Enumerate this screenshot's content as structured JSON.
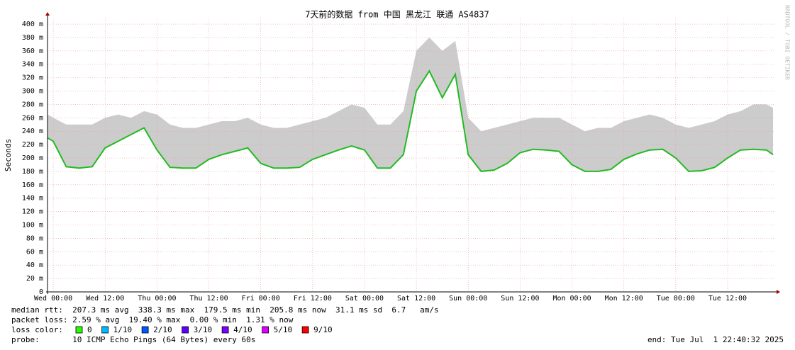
{
  "chart_data": {
    "type": "smokeping",
    "title": "7天前的数据 from 中国 黑龙江 联通 AS4837",
    "y_label": "Seconds",
    "watermark": "RRDTOOL / TOBI OETIKER",
    "x": [
      -1.3,
      0,
      3,
      6,
      9,
      12,
      15,
      18,
      21,
      24,
      27,
      30,
      33,
      36,
      39,
      42,
      45,
      48,
      51,
      54,
      57,
      60,
      63,
      66,
      69,
      72,
      75,
      78,
      81,
      84,
      87,
      90,
      93,
      96,
      99,
      102,
      105,
      108,
      111,
      114,
      117,
      120,
      123,
      126,
      129,
      132,
      135,
      138,
      141,
      144,
      147,
      150,
      153,
      156,
      159,
      162,
      165,
      166.5
    ],
    "series": [
      {
        "name": "median rtt",
        "color": "#22bb22",
        "values": [
          0.23,
          0.225,
          0.187,
          0.185,
          0.187,
          0.215,
          0.225,
          0.235,
          0.245,
          0.212,
          0.186,
          0.185,
          0.185,
          0.198,
          0.205,
          0.21,
          0.215,
          0.192,
          0.185,
          0.185,
          0.186,
          0.198,
          0.205,
          0.212,
          0.218,
          0.212,
          0.185,
          0.185,
          0.205,
          0.3,
          0.33,
          0.29,
          0.325,
          0.205,
          0.18,
          0.182,
          0.192,
          0.208,
          0.213,
          0.212,
          0.21,
          0.19,
          0.18,
          0.18,
          0.183,
          0.198,
          0.206,
          0.212,
          0.213,
          0.2,
          0.18,
          0.181,
          0.186,
          0.2,
          0.212,
          0.213,
          0.212,
          0.205
        ]
      }
    ],
    "smoke": {
      "color": "#cccccc",
      "values": [
        0.265,
        0.26,
        0.25,
        0.25,
        0.25,
        0.26,
        0.265,
        0.26,
        0.27,
        0.265,
        0.25,
        0.245,
        0.245,
        0.25,
        0.255,
        0.255,
        0.26,
        0.25,
        0.245,
        0.245,
        0.25,
        0.255,
        0.26,
        0.27,
        0.28,
        0.275,
        0.25,
        0.25,
        0.27,
        0.36,
        0.38,
        0.36,
        0.375,
        0.26,
        0.24,
        0.245,
        0.25,
        0.255,
        0.26,
        0.26,
        0.26,
        0.25,
        0.24,
        0.245,
        0.245,
        0.255,
        0.26,
        0.265,
        0.26,
        0.25,
        0.245,
        0.25,
        0.255,
        0.265,
        0.27,
        0.28,
        0.28,
        0.275
      ]
    },
    "xlim": [
      -1.33,
      166.67
    ],
    "xticks": [
      {
        "value": 0,
        "label": "Wed 00:00"
      },
      {
        "value": 12,
        "label": "Wed 12:00"
      },
      {
        "value": 24,
        "label": "Thu 00:00"
      },
      {
        "value": 36,
        "label": "Thu 12:00"
      },
      {
        "value": 48,
        "label": "Fri 00:00"
      },
      {
        "value": 60,
        "label": "Fri 12:00"
      },
      {
        "value": 72,
        "label": "Sat 00:00"
      },
      {
        "value": 84,
        "label": "Sat 12:00"
      },
      {
        "value": 96,
        "label": "Sun 00:00"
      },
      {
        "value": 108,
        "label": "Sun 12:00"
      },
      {
        "value": 120,
        "label": "Mon 00:00"
      },
      {
        "value": 132,
        "label": "Mon 12:00"
      },
      {
        "value": 144,
        "label": "Tue 00:00"
      },
      {
        "value": 156,
        "label": "Tue 12:00"
      }
    ],
    "ylim": [
      0,
      0.4085
    ],
    "yticks": [
      0,
      {
        "value": 0.02,
        "label": "20 m"
      },
      {
        "value": 0.04,
        "label": "40 m"
      },
      {
        "value": 0.06,
        "label": "60 m"
      },
      {
        "value": 0.08,
        "label": "80 m"
      },
      {
        "value": 0.1,
        "label": "100 m"
      },
      {
        "value": 0.12,
        "label": "120 m"
      },
      {
        "value": 0.14,
        "label": "140 m"
      },
      {
        "value": 0.16,
        "label": "160 m"
      },
      {
        "value": 0.18,
        "label": "180 m"
      },
      {
        "value": 0.2,
        "label": "200 m"
      },
      {
        "value": 0.22,
        "label": "220 m"
      },
      {
        "value": 0.24,
        "label": "240 m"
      },
      {
        "value": 0.26,
        "label": "260 m"
      },
      {
        "value": 0.28,
        "label": "280 m"
      },
      {
        "value": 0.3,
        "label": "300 m"
      },
      {
        "value": 0.32,
        "label": "320 m"
      },
      {
        "value": 0.34,
        "label": "340 m"
      },
      {
        "value": 0.36,
        "label": "360 m"
      },
      {
        "value": 0.38,
        "label": "380 m"
      },
      {
        "value": 0.4,
        "label": "400 m"
      }
    ],
    "grid": true,
    "stats": [
      "median rtt:  207.3 ms avg  338.3 ms max  179.5 ms min  205.8 ms now  31.1 ms sd  6.7   am/s",
      "packet loss: 2.59 % avg  19.40 % max  0.00 % min  1.31 % now"
    ],
    "loss_label": "loss color:",
    "loss_colors": [
      {
        "label": "0",
        "color": "#26ff00"
      },
      {
        "label": "1/10",
        "color": "#00b8ff"
      },
      {
        "label": "2/10",
        "color": "#0059ff"
      },
      {
        "label": "3/10",
        "color": "#5e00ff"
      },
      {
        "label": "4/10",
        "color": "#7e00ff"
      },
      {
        "label": "5/10",
        "color": "#dd00ff"
      },
      {
        "label": "9/10",
        "color": "#ff0000"
      }
    ],
    "probe": "probe:       10 ICMP Echo Pings (64 Bytes) every 60s",
    "end": "end: Tue Jul  1 22:40:32 2025"
  }
}
